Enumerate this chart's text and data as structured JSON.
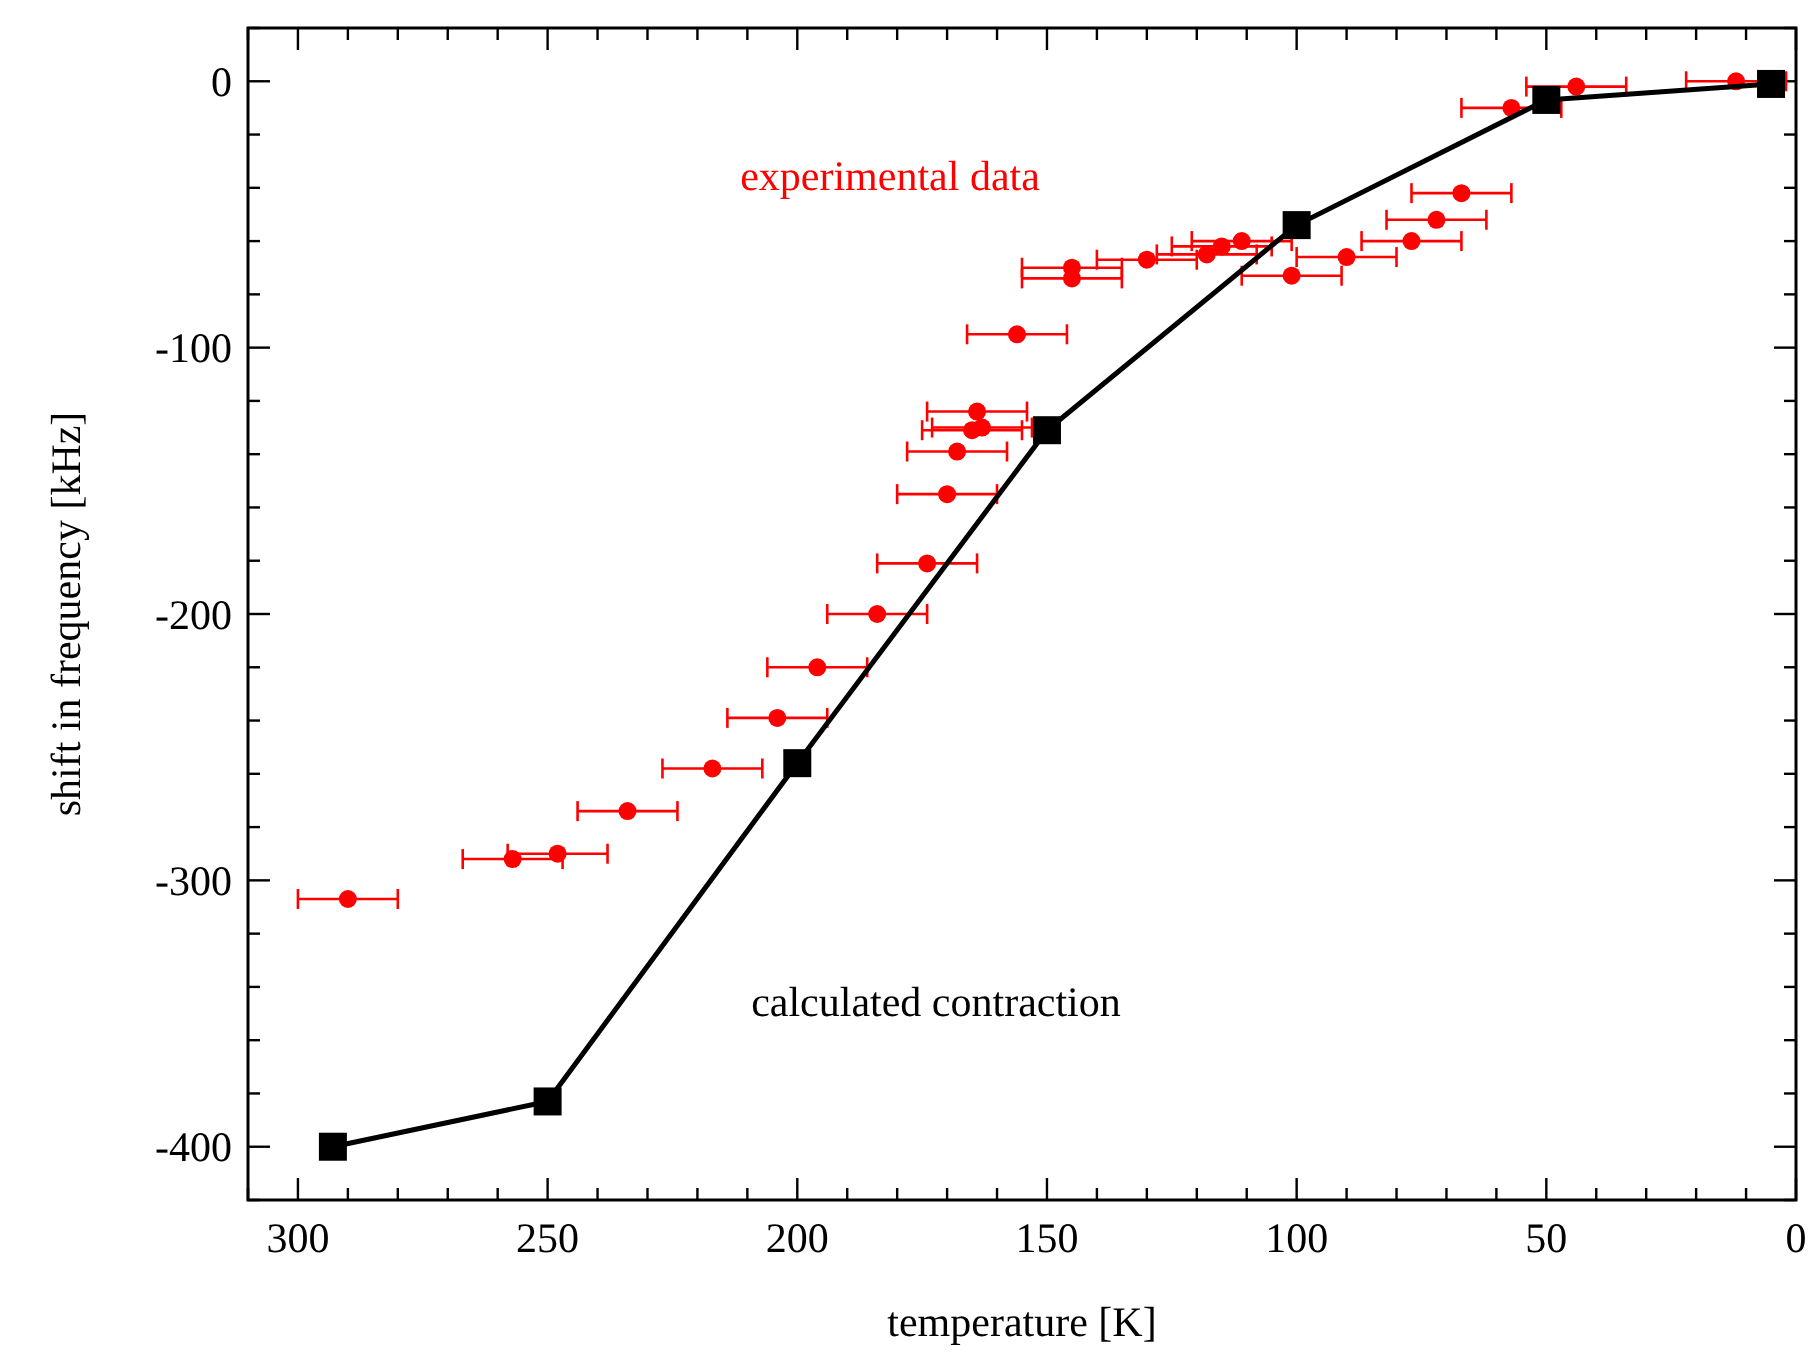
{
  "chart_data": {
    "type": "scatter",
    "xlabel": "temperature [K]",
    "ylabel": "shift in frequency [kHz]",
    "xlim": [
      310,
      0
    ],
    "ylim": [
      -420,
      20
    ],
    "xticks": [
      {
        "value": 310,
        "label": null
      },
      300,
      {
        "value": 290,
        "label": null
      },
      {
        "value": 280,
        "label": null
      },
      {
        "value": 270,
        "label": null
      },
      {
        "value": 260,
        "label": null
      },
      250,
      {
        "value": 240,
        "label": null
      },
      {
        "value": 230,
        "label": null
      },
      {
        "value": 220,
        "label": null
      },
      {
        "value": 210,
        "label": null
      },
      200,
      {
        "value": 190,
        "label": null
      },
      {
        "value": 180,
        "label": null
      },
      {
        "value": 170,
        "label": null
      },
      {
        "value": 160,
        "label": null
      },
      150,
      {
        "value": 140,
        "label": null
      },
      {
        "value": 130,
        "label": null
      },
      {
        "value": 120,
        "label": null
      },
      {
        "value": 110,
        "label": null
      },
      100,
      {
        "value": 90,
        "label": null
      },
      {
        "value": 80,
        "label": null
      },
      {
        "value": 70,
        "label": null
      },
      {
        "value": 60,
        "label": null
      },
      50,
      {
        "value": 40,
        "label": null
      },
      {
        "value": 30,
        "label": null
      },
      {
        "value": 20,
        "label": null
      },
      {
        "value": 10,
        "label": null
      },
      0
    ],
    "yticks": [
      {
        "value": 20,
        "label": null
      },
      0,
      {
        "value": -20,
        "label": null
      },
      {
        "value": -40,
        "label": null
      },
      {
        "value": -60,
        "label": null
      },
      {
        "value": -80,
        "label": null
      },
      -100,
      {
        "value": -120,
        "label": null
      },
      {
        "value": -140,
        "label": null
      },
      {
        "value": -160,
        "label": null
      },
      {
        "value": -180,
        "label": null
      },
      -200,
      {
        "value": -220,
        "label": null
      },
      {
        "value": -240,
        "label": null
      },
      {
        "value": -260,
        "label": null
      },
      {
        "value": -280,
        "label": null
      },
      -300,
      {
        "value": -320,
        "label": null
      },
      {
        "value": -340,
        "label": null
      },
      {
        "value": -360,
        "label": null
      },
      {
        "value": -380,
        "label": null
      },
      -400,
      {
        "value": -420,
        "label": null
      }
    ],
    "grid": false,
    "legend": false,
    "series": [
      {
        "name": "experimental data",
        "marker": "circle",
        "color": "#ff0000",
        "x": [
          290,
          257,
          248,
          234,
          217,
          204,
          196,
          184,
          174,
          170,
          168,
          165,
          163,
          164,
          156,
          145,
          145,
          130,
          118,
          115,
          111,
          101,
          90,
          77,
          72,
          67,
          57,
          44,
          12
        ],
        "values": [
          -307,
          -292,
          -290,
          -274,
          -258,
          -239,
          -220,
          -200,
          -181,
          -155,
          -139,
          -131,
          -130,
          -124,
          -95,
          -70,
          -74,
          -67,
          -65,
          -62,
          -60,
          -73,
          -66,
          -60,
          -52,
          -42,
          -10,
          -2,
          0
        ],
        "xerrors": [
          10,
          10,
          10,
          10,
          10,
          10,
          10,
          10,
          10,
          10,
          10,
          10,
          10,
          10,
          10,
          10,
          10,
          10,
          10,
          10,
          10,
          10,
          10,
          10,
          10,
          10,
          10,
          10,
          10
        ]
      },
      {
        "name": "calculated contraction",
        "type": "line",
        "marker": "square",
        "line_style": "solid",
        "color": "#000000",
        "x": [
          293,
          250,
          200,
          150,
          100,
          50,
          5
        ],
        "values": [
          -400,
          -383,
          -256,
          -131,
          -54,
          -7,
          -1
        ]
      }
    ]
  }
}
